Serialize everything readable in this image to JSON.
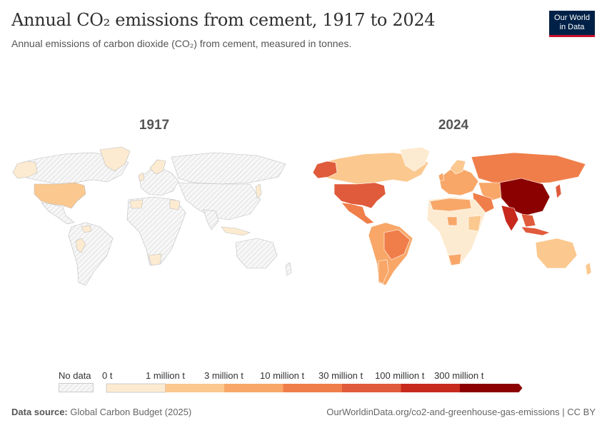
{
  "header": {
    "title": "Annual CO₂ emissions from cement, 1917 to 2024",
    "subtitle": "Annual emissions of carbon dioxide (CO₂) from cement, measured in tonnes.",
    "logo_line1": "Our World",
    "logo_line2": "in Data"
  },
  "maps": [
    {
      "year": "1917"
    },
    {
      "year": "2024"
    }
  ],
  "legend": {
    "no_data_label": "No data",
    "bins": [
      {
        "label": "0 t",
        "color": "#fdebd1"
      },
      {
        "label": "1 million t",
        "color": "#fbc88f"
      },
      {
        "label": "3 million t",
        "color": "#f8a768"
      },
      {
        "label": "10 million t",
        "color": "#f07e4a"
      },
      {
        "label": "30 million t",
        "color": "#e05b3b"
      },
      {
        "label": "100 million t",
        "color": "#c7291d"
      },
      {
        "label": "300 million t",
        "color": "#8b0000"
      }
    ]
  },
  "footer": {
    "source_label": "Data source:",
    "source_value": "Global Carbon Budget (2025)",
    "url": "OurWorldinData.org/co2-and-greenhouse-gas-emissions | CC BY"
  }
}
